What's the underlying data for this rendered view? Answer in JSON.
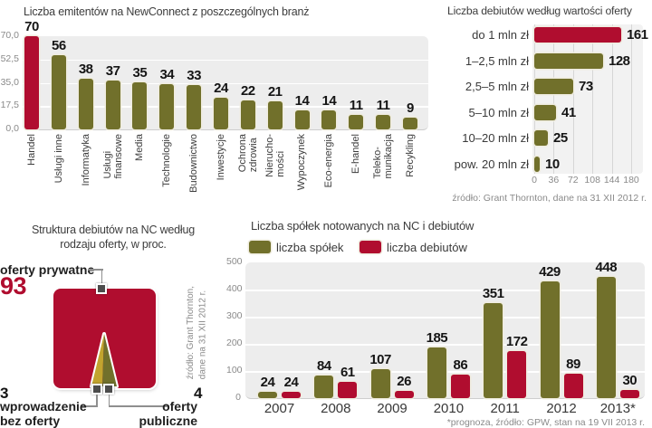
{
  "colors": {
    "red": "#b00d2f",
    "olive": "#71702b",
    "gold": "#c2a42f",
    "title": "#3d3d3d",
    "value": "#151515",
    "axis": "#8a8a8a",
    "plot_bg": "#ededed",
    "grid_white": "#ffffff",
    "grid_gray": "#d6d6d6",
    "outline": "#efecdf",
    "marker": "#4c4c4c"
  },
  "chart_data": [
    {
      "id": "issuers-by-industry",
      "type": "bar",
      "title": "Liczba emitentów na NewConnect z poszczególnych branż",
      "source": "źródło: Grant Thornton, dane na 31 XII 2012 r.",
      "categories": [
        "Handel",
        "Usługi inne",
        "Informatyka",
        "Usługi\nfinansowe",
        "Media",
        "Technologie",
        "Budownictwo",
        "Inwestycje",
        "Ochrona\nzdrowia",
        "Nierucho-\nmości",
        "Wypoczynek",
        "Eco-energia",
        "E-handel",
        "Teleko-\nmunikacja",
        "Recykling"
      ],
      "values": [
        70,
        56,
        38,
        37,
        35,
        34,
        33,
        24,
        22,
        21,
        14,
        14,
        11,
        11,
        9
      ],
      "highlight_index": 0,
      "yticks": [
        "70,0",
        "52,5",
        "35,0",
        "17,5",
        "0,0"
      ],
      "ylim": [
        0,
        70
      ],
      "grid": true,
      "legend": "none"
    },
    {
      "id": "debuts-by-offer-value",
      "type": "bar-horizontal",
      "title": "Liczba debiutów według wartości oferty",
      "source": "źródło: Grant Thornton, dane na 31 XII 2012 r.",
      "categories": [
        "do 1 mln zł",
        "1–2,5 mln zł",
        "2,5–5 mln zł",
        "5–10 mln zł",
        "10–20 mln zł",
        "pow. 20 mln zł"
      ],
      "values": [
        161,
        128,
        73,
        41,
        25,
        10
      ],
      "highlight_index": 0,
      "xticks": [
        0,
        36,
        72,
        108,
        144,
        180
      ],
      "xlim": [
        0,
        180
      ],
      "grid": true,
      "legend": "none"
    },
    {
      "id": "debut-structure",
      "type": "proportional-area",
      "title": "Struktura debiutów na NC według\nrodzaju oferty, w proc.",
      "source": "źródło: Grant Thornton,\ndane na 31 XII 2012 r.",
      "unit": "proc.",
      "slices": [
        {
          "label": "oferty prywatne",
          "value": 93
        },
        {
          "label": "wprowadzenie\nbez oferty",
          "value": 3
        },
        {
          "label": "oferty\npubliczne",
          "value": 4
        }
      ]
    },
    {
      "id": "companies-and-debuts",
      "type": "bar-grouped",
      "title": "Liczba spółek notowanych na NC i debiutów",
      "footnote": "*prognoza, źródło: GPW, stan na 19 VII 2013 r.",
      "categories": [
        "2007",
        "2008",
        "2009",
        "2010",
        "2011",
        "2012",
        "2013*"
      ],
      "series": [
        {
          "name": "liczba spółek",
          "color": "olive",
          "values": [
            24,
            84,
            107,
            185,
            351,
            429,
            448
          ]
        },
        {
          "name": "liczba debiutów",
          "color": "red",
          "values": [
            24,
            61,
            26,
            86,
            172,
            89,
            30
          ]
        }
      ],
      "yticks": [
        500,
        400,
        300,
        200,
        100,
        0
      ],
      "ylim": [
        0,
        500
      ],
      "grid": true,
      "legend": "top"
    }
  ]
}
